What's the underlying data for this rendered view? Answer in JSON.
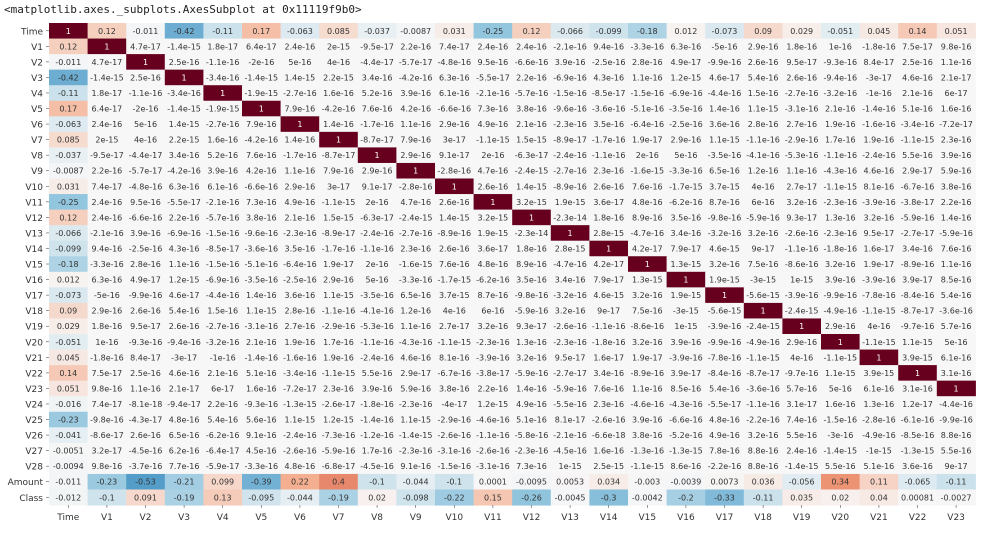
{
  "output_label": "<matplotlib.axes._subplots.AxesSubplot at 0x11119f9b0>",
  "colors": {
    "diag": "#67001f",
    "text_dark": "#333333",
    "text_light": "#ffffff"
  },
  "chart_data": {
    "type": "heatmap",
    "xlabels": [
      "Time",
      "V1",
      "V2",
      "V3",
      "V4",
      "V5",
      "V6",
      "V7",
      "V8",
      "V9",
      "V10",
      "V11",
      "V12",
      "V13",
      "V14",
      "V15",
      "V16",
      "V17",
      "V18",
      "V19",
      "V20",
      "V21",
      "V22",
      "V23"
    ],
    "ylabels": [
      "Time",
      "V1",
      "V2",
      "V3",
      "V4",
      "V5",
      "V6",
      "V7",
      "V8",
      "V9",
      "V10",
      "V11",
      "V12",
      "V13",
      "V14",
      "V15",
      "V16",
      "V17",
      "V18",
      "V19",
      "V20",
      "V21",
      "V22",
      "V23",
      "V24",
      "V25",
      "V26",
      "V27",
      "V28",
      "Amount",
      "Class"
    ],
    "cells": [
      [
        "1",
        "0.12",
        "-0.011",
        "-0.42",
        "-0.11",
        "0.17",
        "-0.063",
        "0.085",
        "-0.037",
        "-0.0087",
        "0.031",
        "-0.25",
        "0.12",
        "-0.066",
        "-0.099",
        "-0.18",
        "0.012",
        "-0.073",
        "0.09",
        "0.029",
        "-0.051",
        "0.045",
        "0.14",
        "0.051"
      ],
      [
        "0.12",
        "1",
        "4.7e-17",
        "-1.4e-15",
        "1.8e-17",
        "6.4e-17",
        "2.4e-16",
        "2e-15",
        "-9.5e-17",
        "2.2e-16",
        "7.4e-17",
        "2.4e-16",
        "2.4e-16",
        "-2.1e-16",
        "9.4e-16",
        "-3.3e-16",
        "6.3e-16",
        "-5e-16",
        "2.9e-16",
        "1.8e-16",
        "1e-16",
        "-1.8e-16",
        "7.5e-17",
        "9.8e-16"
      ],
      [
        "-0.011",
        "4.7e-17",
        "1",
        "2.5e-16",
        "-1.1e-16",
        "-2e-16",
        "5e-16",
        "4e-16",
        "-4.4e-17",
        "-5.7e-17",
        "-4.8e-16",
        "9.5e-16",
        "-6.6e-16",
        "3.9e-16",
        "-2.5e-16",
        "2.8e-16",
        "4.9e-17",
        "-9.9e-16",
        "2.6e-16",
        "9.5e-17",
        "-9.3e-16",
        "8.4e-17",
        "2.5e-16",
        "1.1e-16"
      ],
      [
        "-0.42",
        "-1.4e-15",
        "2.5e-16",
        "1",
        "-3.4e-16",
        "-1.4e-15",
        "1.4e-15",
        "2.2e-15",
        "3.4e-16",
        "-4.2e-16",
        "6.3e-16",
        "-5.5e-17",
        "2.2e-16",
        "-6.9e-16",
        "4.3e-16",
        "1.1e-16",
        "1.2e-15",
        "4.6e-17",
        "5.4e-16",
        "2.6e-16",
        "-9.4e-16",
        "-3e-17",
        "4.6e-16",
        "2.1e-17"
      ],
      [
        "-0.11",
        "1.8e-17",
        "-1.1e-16",
        "-3.4e-16",
        "1",
        "-1.9e-15",
        "-2.7e-16",
        "1.6e-16",
        "5.2e-16",
        "3.9e-16",
        "6.1e-16",
        "-2.1e-16",
        "-5.7e-16",
        "-1.5e-16",
        "-8.5e-17",
        "-1.5e-16",
        "-6.9e-16",
        "-4.4e-16",
        "1.5e-16",
        "-2.7e-16",
        "-3.2e-16",
        "-1e-16",
        "2.1e-16",
        "6e-17"
      ],
      [
        "0.17",
        "6.4e-17",
        "-2e-16",
        "-1.4e-15",
        "-1.9e-15",
        "1",
        "7.9e-16",
        "-4.2e-16",
        "7.6e-16",
        "4.2e-16",
        "-6.6e-16",
        "7.3e-16",
        "3.8e-16",
        "-9.6e-16",
        "-3.6e-16",
        "-5.1e-16",
        "-3.5e-16",
        "1.4e-16",
        "1.1e-15",
        "-3.1e-16",
        "2.1e-16",
        "-1.4e-16",
        "5.1e-16",
        "1.6e-16"
      ],
      [
        "-0.063",
        "2.4e-16",
        "5e-16",
        "1.4e-15",
        "-2.7e-16",
        "7.9e-16",
        "1",
        "1.4e-16",
        "-1.7e-16",
        "1.1e-16",
        "2.9e-16",
        "4.9e-16",
        "2.1e-16",
        "-2.3e-16",
        "3.5e-16",
        "-6.4e-16",
        "-2.5e-16",
        "3.6e-16",
        "2.8e-16",
        "2.7e-16",
        "1.9e-16",
        "-1.6e-16",
        "-3.4e-16",
        "-7.2e-17"
      ],
      [
        "0.085",
        "2e-15",
        "4e-16",
        "2.2e-15",
        "1.6e-16",
        "-4.2e-16",
        "1.4e-16",
        "1",
        "-8.7e-17",
        "7.9e-16",
        "3e-17",
        "-1.1e-15",
        "1.5e-15",
        "-8.9e-17",
        "-1.7e-16",
        "1.9e-17",
        "2.9e-16",
        "1.1e-15",
        "-1.1e-16",
        "-2.9e-16",
        "1.7e-16",
        "1.9e-16",
        "-1.1e-15",
        "2.3e-16"
      ],
      [
        "-0.037",
        "-9.5e-17",
        "-4.4e-17",
        "3.4e-16",
        "5.2e-16",
        "7.6e-16",
        "-1.7e-16",
        "-8.7e-17",
        "1",
        "2.9e-16",
        "9.1e-17",
        "2e-16",
        "-6.3e-17",
        "-2.4e-16",
        "-1.1e-16",
        "2e-16",
        "5e-16",
        "-3.5e-16",
        "-4.1e-16",
        "-5.3e-16",
        "-1.1e-16",
        "-2.4e-16",
        "5.5e-16",
        "3.9e-16"
      ],
      [
        "-0.0087",
        "2.2e-16",
        "-5.7e-17",
        "-4.2e-16",
        "3.9e-16",
        "4.2e-16",
        "1.1e-16",
        "7.9e-16",
        "2.9e-16",
        "1",
        "-2.8e-16",
        "4.7e-16",
        "-2.4e-15",
        "-2.7e-16",
        "2.3e-16",
        "-1.6e-15",
        "-3.3e-16",
        "6.5e-16",
        "1.2e-16",
        "1.1e-16",
        "-4.3e-16",
        "4.6e-16",
        "2.9e-17",
        "5.9e-16"
      ],
      [
        "0.031",
        "7.4e-17",
        "-4.8e-16",
        "6.3e-16",
        "6.1e-16",
        "-6.6e-16",
        "2.9e-16",
        "3e-17",
        "9.1e-17",
        "-2.8e-16",
        "1",
        "2.6e-16",
        "1.4e-15",
        "-8.9e-16",
        "2.6e-16",
        "7.6e-16",
        "-1.7e-15",
        "3.7e-15",
        "4e-16",
        "2.7e-17",
        "-1.1e-15",
        "8.1e-16",
        "-6.7e-16",
        "3.8e-16"
      ],
      [
        "-0.25",
        "2.4e-16",
        "9.5e-16",
        "-5.5e-17",
        "-2.1e-16",
        "7.3e-16",
        "4.9e-16",
        "-1.1e-15",
        "2e-16",
        "4.7e-16",
        "2.6e-16",
        "1",
        "3.2e-15",
        "1.9e-15",
        "3.6e-17",
        "4.8e-16",
        "-6.2e-16",
        "8.7e-16",
        "6e-16",
        "3.2e-16",
        "-2.3e-16",
        "-3.9e-16",
        "-3.8e-17",
        "2.2e-16"
      ],
      [
        "0.12",
        "2.4e-16",
        "-6.6e-16",
        "2.2e-16",
        "-5.7e-16",
        "3.8e-16",
        "2.1e-16",
        "1.5e-15",
        "-6.3e-17",
        "-2.4e-15",
        "1.4e-15",
        "3.2e-15",
        "1",
        "-2.3e-14",
        "1.8e-16",
        "8.9e-16",
        "3.5e-16",
        "-9.8e-16",
        "-5.9e-16",
        "9.3e-17",
        "1.3e-16",
        "3.2e-16",
        "-5.9e-16",
        "1.4e-16"
      ],
      [
        "-0.066",
        "-2.1e-16",
        "3.9e-16",
        "-6.9e-16",
        "-1.5e-16",
        "-9.6e-16",
        "-2.3e-16",
        "-8.9e-17",
        "-2.4e-16",
        "-2.7e-16",
        "-8.9e-16",
        "1.9e-15",
        "-2.3e-14",
        "1",
        "2.8e-15",
        "-4.7e-16",
        "3.4e-16",
        "-3.2e-16",
        "3.2e-16",
        "-2.6e-16",
        "-2.3e-16",
        "9.5e-17",
        "-2.7e-17",
        "-5.9e-16"
      ],
      [
        "-0.099",
        "9.4e-16",
        "-2.5e-16",
        "4.3e-16",
        "-8.5e-17",
        "-3.6e-16",
        "3.5e-16",
        "-1.7e-16",
        "-1.1e-16",
        "2.3e-16",
        "2.6e-16",
        "3.6e-17",
        "1.8e-16",
        "2.8e-15",
        "1",
        "4.2e-17",
        "7.9e-17",
        "4.6e-15",
        "9e-17",
        "-1.1e-16",
        "-1.8e-16",
        "1.6e-17",
        "3.4e-16",
        "7.6e-16"
      ],
      [
        "-0.18",
        "-3.3e-16",
        "2.8e-16",
        "1.1e-16",
        "-1.5e-16",
        "-5.1e-16",
        "-6.4e-16",
        "1.9e-17",
        "2e-16",
        "-1.6e-15",
        "7.6e-16",
        "4.8e-16",
        "8.9e-16",
        "-4.7e-16",
        "4.2e-17",
        "1",
        "1.3e-15",
        "3.2e-16",
        "7.5e-16",
        "-8.6e-16",
        "3.2e-16",
        "1.9e-17",
        "-8.9e-16",
        "1.1e-16"
      ],
      [
        "0.012",
        "6.3e-16",
        "4.9e-17",
        "1.2e-15",
        "-6.9e-16",
        "-3.5e-16",
        "-2.5e-16",
        "2.9e-16",
        "5e-16",
        "-3.3e-16",
        "-1.7e-15",
        "-6.2e-16",
        "3.5e-16",
        "3.4e-16",
        "7.9e-17",
        "1.3e-15",
        "1",
        "1.9e-15",
        "-3e-15",
        "1e-15",
        "3.9e-16",
        "-3.9e-16",
        "3.9e-17",
        "8.5e-16"
      ],
      [
        "-0.073",
        "-5e-16",
        "-9.9e-16",
        "4.6e-17",
        "-4.4e-16",
        "1.4e-16",
        "3.6e-16",
        "1.1e-15",
        "-3.5e-16",
        "6.5e-16",
        "3.7e-15",
        "8.7e-16",
        "-9.8e-16",
        "-3.2e-16",
        "4.6e-15",
        "3.2e-16",
        "1.9e-15",
        "1",
        "-5.6e-15",
        "-3.9e-16",
        "-9.9e-16",
        "-7.8e-16",
        "-8.4e-16",
        "5.4e-16"
      ],
      [
        "0.09",
        "2.9e-16",
        "2.6e-16",
        "5.4e-16",
        "1.5e-16",
        "1.1e-15",
        "2.8e-16",
        "-1.1e-16",
        "-4.1e-16",
        "1.2e-16",
        "4e-16",
        "6e-16",
        "-5.9e-16",
        "3.2e-16",
        "9e-17",
        "7.5e-16",
        "-3e-15",
        "-5.6e-15",
        "1",
        "-2.4e-15",
        "-4.9e-16",
        "-1.1e-15",
        "-8.7e-17",
        "-3.6e-16"
      ],
      [
        "0.029",
        "1.8e-16",
        "9.5e-17",
        "2.6e-16",
        "-2.7e-16",
        "-3.1e-16",
        "2.7e-16",
        "-2.9e-16",
        "-5.3e-16",
        "1.1e-16",
        "2.7e-17",
        "3.2e-16",
        "9.3e-17",
        "-2.6e-16",
        "-1.1e-16",
        "-8.6e-16",
        "1e-15",
        "-3.9e-16",
        "-2.4e-15",
        "1",
        "2.9e-16",
        "4e-16",
        "-9.7e-16",
        "5.7e-16"
      ],
      [
        "-0.051",
        "1e-16",
        "-9.3e-16",
        "-9.4e-16",
        "-3.2e-16",
        "2.1e-16",
        "1.9e-16",
        "1.7e-16",
        "-1.1e-16",
        "-4.3e-16",
        "-1.1e-15",
        "-2.3e-16",
        "1.3e-16",
        "-2.3e-16",
        "-1.8e-16",
        "3.2e-16",
        "3.9e-16",
        "-9.9e-16",
        "-4.9e-16",
        "2.9e-16",
        "1",
        "-1.1e-15",
        "1.1e-15",
        "5e-16"
      ],
      [
        "0.045",
        "-1.8e-16",
        "8.4e-17",
        "-3e-17",
        "-1e-16",
        "-1.4e-16",
        "-1.6e-16",
        "1.9e-16",
        "-2.4e-16",
        "4.6e-16",
        "8.1e-16",
        "-3.9e-16",
        "3.2e-16",
        "9.5e-17",
        "1.6e-17",
        "1.9e-17",
        "-3.9e-16",
        "-7.8e-16",
        "-1.1e-15",
        "4e-16",
        "-1.1e-15",
        "1",
        "3.9e-15",
        "6.1e-16"
      ],
      [
        "0.14",
        "7.5e-17",
        "2.5e-16",
        "4.6e-16",
        "2.1e-16",
        "5.1e-16",
        "-3.4e-16",
        "-1.1e-15",
        "5.5e-16",
        "2.9e-17",
        "-6.7e-16",
        "-3.8e-17",
        "-5.9e-16",
        "-2.7e-17",
        "3.4e-16",
        "-8.9e-16",
        "3.9e-17",
        "-8.4e-16",
        "-8.7e-17",
        "-9.7e-16",
        "1.1e-15",
        "3.9e-15",
        "1",
        "3.1e-16"
      ],
      [
        "0.051",
        "9.8e-16",
        "1.1e-16",
        "2.1e-17",
        "6e-17",
        "1.6e-16",
        "-7.2e-17",
        "2.3e-16",
        "3.9e-16",
        "5.9e-16",
        "3.8e-16",
        "2.2e-16",
        "1.4e-16",
        "-5.9e-16",
        "7.6e-16",
        "1.1e-16",
        "8.5e-16",
        "5.4e-16",
        "-3.6e-16",
        "5.7e-16",
        "5e-16",
        "6.1e-16",
        "3.1e-16",
        "1"
      ],
      [
        "-0.016",
        "7.4e-17",
        "-8.1e-18",
        "-9.4e-17",
        "2.2e-16",
        "-9.3e-16",
        "-1.3e-15",
        "-2.6e-17",
        "-1.8e-16",
        "-2.3e-16",
        "-4e-17",
        "1.2e-15",
        "4.9e-16",
        "-5.5e-16",
        "2.3e-16",
        "-4.6e-16",
        "-4.3e-16",
        "-5.5e-17",
        "-1.1e-16",
        "3.1e-17",
        "1.6e-16",
        "1.3e-16",
        "1.2e-17",
        "-4.4e-16"
      ],
      [
        "-0.23",
        "-9.8e-16",
        "-4.3e-17",
        "4.8e-16",
        "5.4e-16",
        "5.6e-16",
        "1.1e-15",
        "1.2e-15",
        "-1.4e-16",
        "1.1e-15",
        "-2.9e-16",
        "-4.6e-16",
        "5.1e-16",
        "8.1e-17",
        "-2.6e-16",
        "3.9e-16",
        "-6.6e-16",
        "4.8e-16",
        "-2.2e-16",
        "7.4e-16",
        "-1.5e-16",
        "-2.8e-16",
        "-6.1e-16",
        "-9.9e-16"
      ],
      [
        "-0.041",
        "-8.6e-17",
        "2.6e-16",
        "6.5e-16",
        "-6.2e-16",
        "9.1e-16",
        "-2.4e-16",
        "-7.3e-16",
        "-1.2e-16",
        "-1.4e-15",
        "-2.6e-16",
        "-1.1e-16",
        "-5.8e-16",
        "-2.1e-16",
        "-6.6e-18",
        "3.8e-16",
        "-5.2e-16",
        "4.9e-16",
        "3.2e-16",
        "5.5e-16",
        "-3e-16",
        "-4.9e-16",
        "-8.5e-16",
        "8.8e-16"
      ],
      [
        "-0.0051",
        "3.2e-17",
        "-4.5e-16",
        "6.2e-16",
        "-6.4e-17",
        "4.5e-16",
        "-2.6e-16",
        "-5.9e-16",
        "1.7e-16",
        "-2.3e-16",
        "-3.1e-16",
        "-2.6e-16",
        "-2.3e-16",
        "-4.5e-16",
        "1.6e-16",
        "-1.3e-16",
        "-1.3e-15",
        "7.8e-16",
        "8.8e-16",
        "2.4e-16",
        "-1.4e-15",
        "-1e-15",
        "-1.3e-15",
        "5.5e-16"
      ],
      [
        "-0.0094",
        "9.8e-16",
        "-3.7e-16",
        "7.7e-16",
        "-5.9e-17",
        "-3.3e-16",
        "4.8e-16",
        "-6.8e-17",
        "-4.5e-16",
        "9.1e-16",
        "-1.5e-16",
        "-3.1e-16",
        "7.3e-16",
        "1e-15",
        "2.5e-15",
        "-1.1e-15",
        "8.6e-16",
        "-2.2e-16",
        "8.8e-16",
        "-1.4e-15",
        "5.5e-16",
        "5.1e-16",
        "3.6e-16",
        "9e-17"
      ],
      [
        "-0.011",
        "-0.23",
        "-0.53",
        "-0.21",
        "0.099",
        "-0.39",
        "0.22",
        "0.4",
        "-0.1",
        "-0.044",
        "-0.1",
        "0.0001",
        "-0.0095",
        "0.0053",
        "0.034",
        "-0.003",
        "-0.0039",
        "0.0073",
        "0.036",
        "-0.056",
        "0.34",
        "0.11",
        "-0.065",
        "-0.11"
      ],
      [
        "-0.012",
        "-0.1",
        "0.091",
        "-0.19",
        "0.13",
        "-0.095",
        "-0.044",
        "-0.19",
        "0.02",
        "-0.098",
        "-0.22",
        "0.15",
        "-0.26",
        "-0.0045",
        "-0.3",
        "-0.0042",
        "-0.2",
        "-0.33",
        "-0.11",
        "0.035",
        "0.02",
        "0.04",
        "0.00081",
        "-0.0027"
      ]
    ]
  }
}
